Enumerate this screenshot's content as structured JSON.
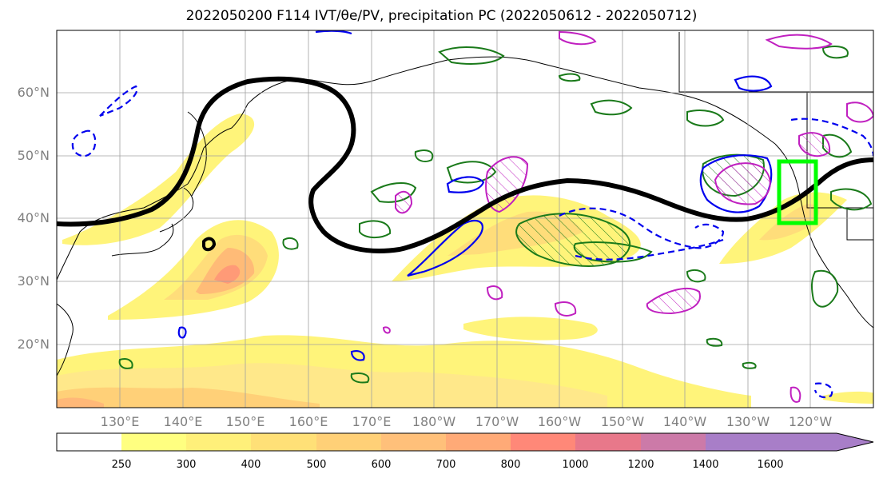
{
  "title": "2022050200 F114 IVT/θe/PV, precipitation PC (2022050612 - 2022050712)",
  "lat_labels": [
    "60°N",
    "50°N",
    "40°N",
    "30°N",
    "20°N"
  ],
  "lon_labels": [
    "130°E",
    "140°E",
    "150°E",
    "160°E",
    "170°E",
    "180°W",
    "170°W",
    "160°W",
    "150°W",
    "140°W",
    "130°W",
    "120°W"
  ],
  "colorbar": {
    "ticks": [
      "250",
      "300",
      "400",
      "500",
      "600",
      "700",
      "800",
      "1000",
      "1200",
      "1400",
      "1600"
    ],
    "colors": [
      "#ffffff",
      "#ffff80",
      "#fff07a",
      "#ffe077",
      "#ffd077",
      "#ffc07a",
      "#ffaa77",
      "#ff8878",
      "#e8788a",
      "#cc7aa8",
      "#a87ec8"
    ]
  },
  "colors": {
    "ridge_line": "#000000",
    "green_contour": "#1a7a1a",
    "blue_contour": "#0000ee",
    "magenta_contour": "#c020c0",
    "target_box": "#00ff00"
  }
}
